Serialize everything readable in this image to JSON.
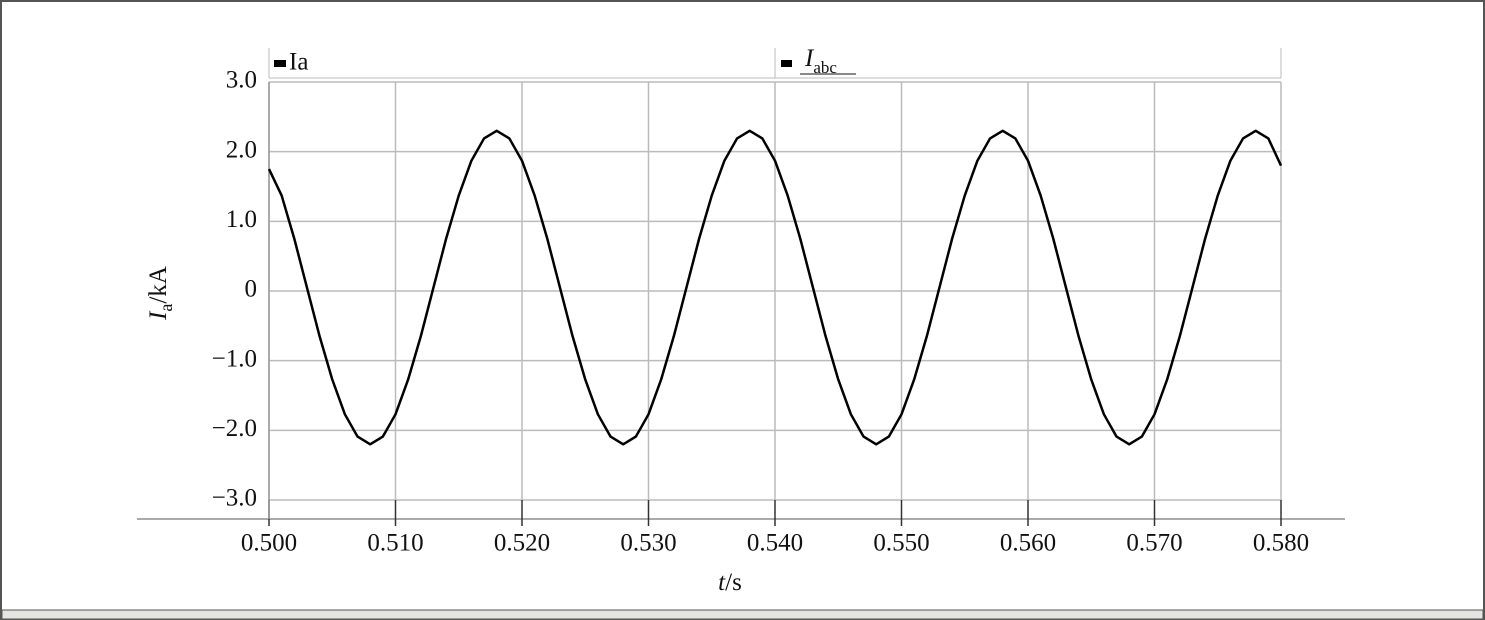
{
  "chart_data": {
    "type": "line",
    "legend_title": {
      "main": "I",
      "sub": "abc"
    },
    "xlabel": {
      "main": "t",
      "rest": "/s"
    },
    "ylabel": {
      "main": "I",
      "sub": "a",
      "rest": "/kA"
    },
    "grid": true,
    "xlim": [
      0.5,
      0.58
    ],
    "ylim": [
      -3,
      3
    ],
    "xticks": [
      {
        "value": 0.5,
        "label": "0.500"
      },
      {
        "value": 0.51,
        "label": "0.510"
      },
      {
        "value": 0.52,
        "label": "0.520"
      },
      {
        "value": 0.53,
        "label": "0.530"
      },
      {
        "value": 0.54,
        "label": "0.540"
      },
      {
        "value": 0.55,
        "label": "0.550"
      },
      {
        "value": 0.56,
        "label": "0.560"
      },
      {
        "value": 0.57,
        "label": "0.570"
      },
      {
        "value": 0.58,
        "label": "0.580"
      }
    ],
    "yticks": [
      {
        "value": 3,
        "label": "3.0"
      },
      {
        "value": 2,
        "label": "2.0"
      },
      {
        "value": 1,
        "label": "1.0"
      },
      0,
      {
        "value": -1,
        "label": "−1.0"
      },
      {
        "value": -2,
        "label": "−2.0"
      },
      {
        "value": -3,
        "label": "−3.0"
      }
    ],
    "x": [
      0.5,
      0.501,
      0.502,
      0.503,
      0.504,
      0.505,
      0.506,
      0.507,
      0.508,
      0.509,
      0.51,
      0.511,
      0.512,
      0.513,
      0.514,
      0.515,
      0.516,
      0.517,
      0.518,
      0.519,
      0.52,
      0.521,
      0.522,
      0.523,
      0.524,
      0.525,
      0.526,
      0.527,
      0.528,
      0.529,
      0.53,
      0.531,
      0.532,
      0.533,
      0.534,
      0.535,
      0.536,
      0.537,
      0.538,
      0.539,
      0.54,
      0.541,
      0.542,
      0.543,
      0.544,
      0.545,
      0.546,
      0.547,
      0.548,
      0.549,
      0.55,
      0.551,
      0.552,
      0.553,
      0.554,
      0.555,
      0.556,
      0.557,
      0.558,
      0.559,
      0.56,
      0.561,
      0.562,
      0.563,
      0.564,
      0.565,
      0.566,
      0.567,
      0.568,
      0.569,
      0.57,
      0.571,
      0.572,
      0.573,
      0.574,
      0.575,
      0.576,
      0.577,
      0.578,
      0.579,
      0.58
    ],
    "series": [
      {
        "name": "Ia",
        "color": "#000000",
        "values": [
          1.75,
          1.37,
          0.75,
          0.05,
          -0.65,
          -1.27,
          -1.77,
          -2.09,
          -2.2,
          -2.09,
          -1.77,
          -1.27,
          -0.65,
          0.05,
          0.75,
          1.37,
          1.87,
          2.19,
          2.3,
          2.19,
          1.87,
          1.37,
          0.75,
          0.05,
          -0.65,
          -1.27,
          -1.77,
          -2.09,
          -2.2,
          -2.09,
          -1.77,
          -1.27,
          -0.65,
          0.05,
          0.75,
          1.37,
          1.87,
          2.19,
          2.3,
          2.19,
          1.87,
          1.37,
          0.75,
          0.05,
          -0.65,
          -1.27,
          -1.77,
          -2.09,
          -2.2,
          -2.09,
          -1.77,
          -1.27,
          -0.65,
          0.05,
          0.75,
          1.37,
          1.87,
          2.19,
          2.3,
          2.19,
          1.87,
          1.37,
          0.75,
          0.05,
          -0.65,
          -1.27,
          -1.77,
          -2.09,
          -2.2,
          -2.09,
          -1.77,
          -1.27,
          -0.65,
          0.05,
          0.75,
          1.37,
          1.87,
          2.19,
          2.3,
          2.19,
          1.8
        ]
      }
    ]
  }
}
